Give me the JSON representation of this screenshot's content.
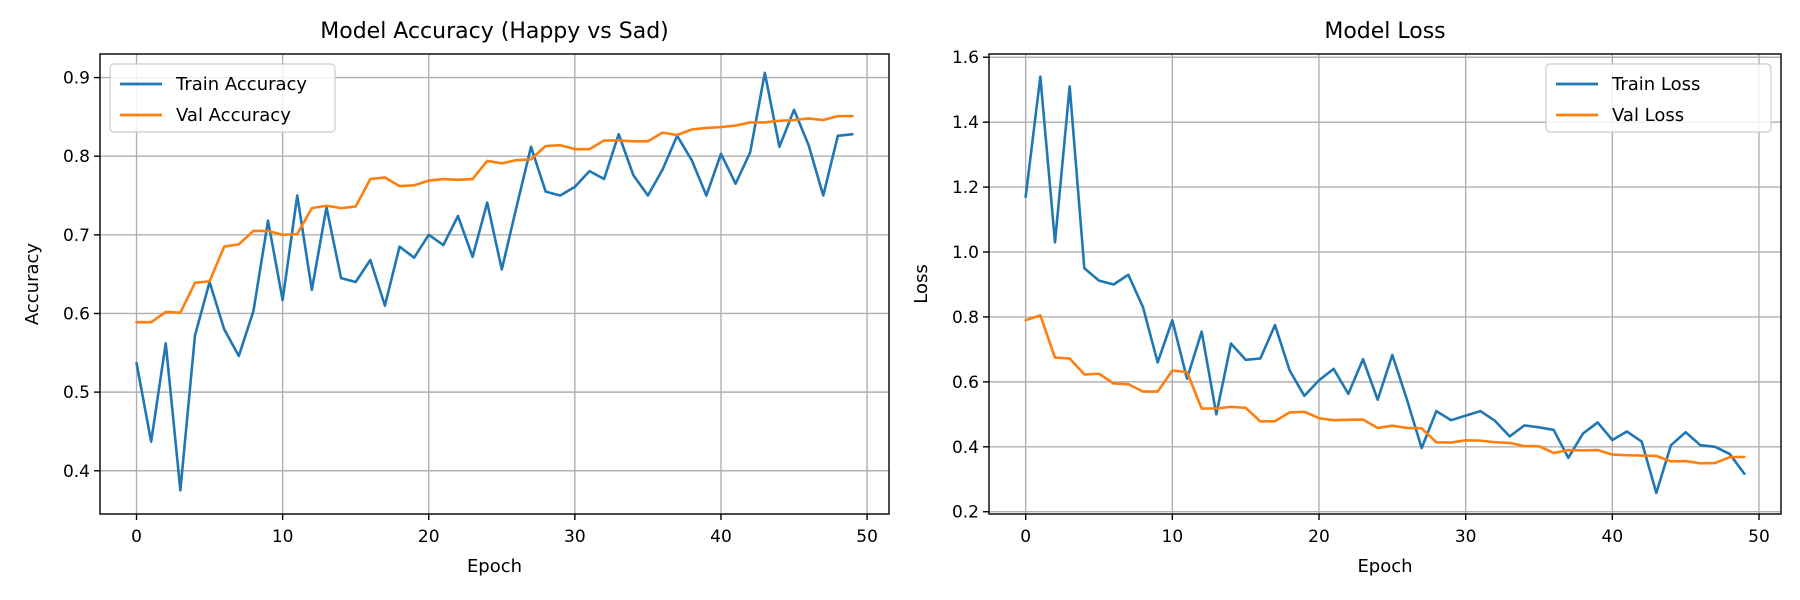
{
  "colors": {
    "train": "#1f77b4",
    "val": "#ff7f0e",
    "grid": "#b0b0b0"
  },
  "chart_data": [
    {
      "type": "line",
      "title": "Model Accuracy (Happy vs Sad)",
      "xlabel": "Epoch",
      "ylabel": "Accuracy",
      "xlim": [
        -2.5,
        51.5
      ],
      "ylim": [
        0.345,
        0.93
      ],
      "xticks": [
        0,
        10,
        20,
        30,
        40,
        50
      ],
      "yticks": [
        0.4,
        0.5,
        0.6,
        0.7,
        0.8,
        0.9
      ],
      "ytick_labels": [
        "0.4",
        "0.5",
        "0.6",
        "0.7",
        "0.8",
        "0.9"
      ],
      "grid": true,
      "legend": "top-left",
      "x": [
        0,
        1,
        2,
        3,
        4,
        5,
        6,
        7,
        8,
        9,
        10,
        11,
        12,
        13,
        14,
        15,
        16,
        17,
        18,
        19,
        20,
        21,
        22,
        23,
        24,
        25,
        26,
        27,
        28,
        29,
        30,
        31,
        32,
        33,
        34,
        35,
        36,
        37,
        38,
        39,
        40,
        41,
        42,
        43,
        44,
        45,
        46,
        47,
        48,
        49
      ],
      "series": [
        {
          "name": "Train Accuracy",
          "color": "#1f77b4",
          "values": [
            0.537,
            0.437,
            0.562,
            0.375,
            0.572,
            0.64,
            0.58,
            0.546,
            0.603,
            0.718,
            0.617,
            0.75,
            0.63,
            0.735,
            0.645,
            0.64,
            0.668,
            0.61,
            0.685,
            0.671,
            0.7,
            0.687,
            0.724,
            0.672,
            0.741,
            0.656,
            0.735,
            0.812,
            0.755,
            0.75,
            0.761,
            0.781,
            0.771,
            0.828,
            0.776,
            0.75,
            0.783,
            0.826,
            0.795,
            0.75,
            0.803,
            0.765,
            0.805,
            0.906,
            0.812,
            0.859,
            0.814,
            0.75,
            0.826,
            0.828
          ]
        },
        {
          "name": "Val Accuracy",
          "color": "#ff7f0e",
          "values": [
            0.589,
            0.589,
            0.602,
            0.601,
            0.639,
            0.641,
            0.685,
            0.688,
            0.705,
            0.705,
            0.7,
            0.701,
            0.734,
            0.737,
            0.734,
            0.736,
            0.771,
            0.773,
            0.762,
            0.763,
            0.769,
            0.771,
            0.77,
            0.771,
            0.794,
            0.791,
            0.795,
            0.796,
            0.813,
            0.814,
            0.809,
            0.809,
            0.82,
            0.82,
            0.819,
            0.819,
            0.83,
            0.827,
            0.834,
            0.836,
            0.837,
            0.839,
            0.843,
            0.843,
            0.845,
            0.846,
            0.848,
            0.846,
            0.851,
            0.851
          ]
        }
      ]
    },
    {
      "type": "line",
      "title": "Model Loss",
      "xlabel": "Epoch",
      "ylabel": "Loss",
      "xlim": [
        -2.5,
        51.5
      ],
      "ylim": [
        0.193,
        1.61
      ],
      "xticks": [
        0,
        10,
        20,
        30,
        40,
        50
      ],
      "yticks": [
        0.2,
        0.4,
        0.6,
        0.8,
        1.0,
        1.2,
        1.4,
        1.6
      ],
      "ytick_labels": [
        "0.2",
        "0.4",
        "0.6",
        "0.8",
        "1.0",
        "1.2",
        "1.4",
        "1.6"
      ],
      "grid": true,
      "legend": "top-right",
      "x": [
        0,
        1,
        2,
        3,
        4,
        5,
        6,
        7,
        8,
        9,
        10,
        11,
        12,
        13,
        14,
        15,
        16,
        17,
        18,
        19,
        20,
        21,
        22,
        23,
        24,
        25,
        26,
        27,
        28,
        29,
        30,
        31,
        32,
        33,
        34,
        35,
        36,
        37,
        38,
        39,
        40,
        41,
        42,
        43,
        44,
        45,
        46,
        47,
        48,
        49
      ],
      "series": [
        {
          "name": "Train Loss",
          "color": "#1f77b4",
          "values": [
            1.17,
            1.54,
            1.03,
            1.51,
            0.95,
            0.912,
            0.9,
            0.93,
            0.83,
            0.66,
            0.79,
            0.61,
            0.755,
            0.5,
            0.718,
            0.668,
            0.672,
            0.775,
            0.635,
            0.557,
            0.605,
            0.64,
            0.563,
            0.67,
            0.545,
            0.683,
            0.545,
            0.396,
            0.51,
            0.482,
            0.496,
            0.51,
            0.48,
            0.432,
            0.466,
            0.46,
            0.452,
            0.366,
            0.441,
            0.475,
            0.421,
            0.447,
            0.416,
            0.258,
            0.405,
            0.445,
            0.405,
            0.4,
            0.378,
            0.317
          ]
        },
        {
          "name": "Val Loss",
          "color": "#ff7f0e",
          "values": [
            0.79,
            0.805,
            0.675,
            0.672,
            0.623,
            0.625,
            0.595,
            0.593,
            0.57,
            0.57,
            0.635,
            0.63,
            0.518,
            0.518,
            0.523,
            0.52,
            0.478,
            0.479,
            0.506,
            0.508,
            0.488,
            0.482,
            0.483,
            0.484,
            0.458,
            0.465,
            0.458,
            0.457,
            0.414,
            0.413,
            0.42,
            0.419,
            0.414,
            0.412,
            0.402,
            0.402,
            0.381,
            0.39,
            0.389,
            0.39,
            0.376,
            0.374,
            0.373,
            0.372,
            0.355,
            0.356,
            0.349,
            0.35,
            0.368,
            0.369
          ]
        }
      ]
    }
  ]
}
